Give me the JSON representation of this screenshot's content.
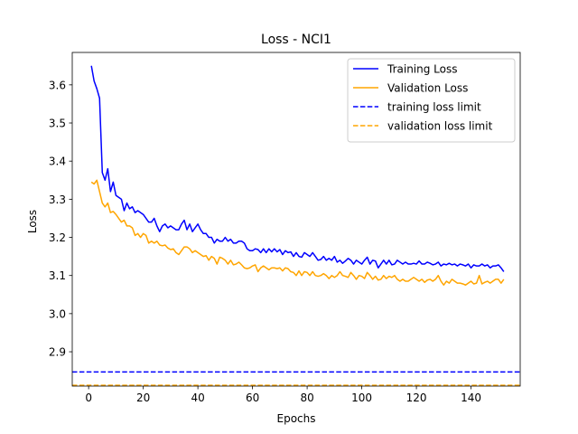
{
  "chart_data": {
    "type": "line",
    "title": "Loss - NCI1",
    "xlabel": "Epochs",
    "ylabel": "Loss",
    "xlim": [
      -6,
      158
    ],
    "ylim": [
      2.81,
      3.685
    ],
    "x_ticks": [
      0,
      20,
      40,
      60,
      80,
      100,
      120,
      140
    ],
    "x_tick_labels": [
      "0",
      "20",
      "40",
      "60",
      "80",
      "100",
      "120",
      "140"
    ],
    "y_ticks": [
      2.9,
      3.0,
      3.1,
      3.2,
      3.3,
      3.4,
      3.5,
      3.6
    ],
    "y_tick_labels": [
      "2.9",
      "3.0",
      "3.1",
      "3.2",
      "3.3",
      "3.4",
      "3.5",
      "3.6"
    ],
    "grid": false,
    "legend_position": "top-right",
    "x": [
      1,
      2,
      3,
      4,
      5,
      6,
      7,
      8,
      9,
      10,
      11,
      12,
      13,
      14,
      15,
      16,
      17,
      18,
      19,
      20,
      21,
      22,
      23,
      24,
      25,
      26,
      27,
      28,
      29,
      30,
      31,
      32,
      33,
      34,
      35,
      36,
      37,
      38,
      39,
      40,
      41,
      42,
      43,
      44,
      45,
      46,
      47,
      48,
      49,
      50,
      51,
      52,
      53,
      54,
      55,
      56,
      57,
      58,
      59,
      60,
      61,
      62,
      63,
      64,
      65,
      66,
      67,
      68,
      69,
      70,
      71,
      72,
      73,
      74,
      75,
      76,
      77,
      78,
      79,
      80,
      81,
      82,
      83,
      84,
      85,
      86,
      87,
      88,
      89,
      90,
      91,
      92,
      93,
      94,
      95,
      96,
      97,
      98,
      99,
      100,
      101,
      102,
      103,
      104,
      105,
      106,
      107,
      108,
      109,
      110,
      111,
      112,
      113,
      114,
      115,
      116,
      117,
      118,
      119,
      120,
      121,
      122,
      123,
      124,
      125,
      126,
      127,
      128,
      129,
      130,
      131,
      132,
      133,
      134,
      135,
      136,
      137,
      138,
      139,
      140,
      141,
      142,
      143,
      144,
      145,
      146,
      147,
      148,
      149,
      150,
      151,
      152
    ],
    "series": [
      {
        "name": "Training Loss",
        "color": "#0000ff",
        "style": "solid",
        "values": [
          3.65,
          3.61,
          3.59,
          3.565,
          3.37,
          3.35,
          3.38,
          3.32,
          3.345,
          3.31,
          3.305,
          3.3,
          3.27,
          3.29,
          3.275,
          3.28,
          3.265,
          3.27,
          3.265,
          3.26,
          3.25,
          3.24,
          3.24,
          3.25,
          3.23,
          3.215,
          3.23,
          3.235,
          3.225,
          3.23,
          3.225,
          3.22,
          3.22,
          3.235,
          3.245,
          3.22,
          3.235,
          3.215,
          3.225,
          3.235,
          3.22,
          3.21,
          3.21,
          3.2,
          3.2,
          3.185,
          3.195,
          3.19,
          3.19,
          3.2,
          3.19,
          3.195,
          3.185,
          3.185,
          3.19,
          3.19,
          3.185,
          3.17,
          3.165,
          3.165,
          3.17,
          3.168,
          3.16,
          3.17,
          3.16,
          3.17,
          3.162,
          3.17,
          3.162,
          3.168,
          3.155,
          3.165,
          3.16,
          3.162,
          3.15,
          3.16,
          3.15,
          3.148,
          3.16,
          3.155,
          3.15,
          3.16,
          3.15,
          3.14,
          3.142,
          3.15,
          3.14,
          3.145,
          3.14,
          3.15,
          3.135,
          3.14,
          3.132,
          3.138,
          3.145,
          3.14,
          3.13,
          3.14,
          3.135,
          3.13,
          3.14,
          3.148,
          3.13,
          3.14,
          3.138,
          3.12,
          3.13,
          3.14,
          3.13,
          3.14,
          3.128,
          3.13,
          3.14,
          3.135,
          3.13,
          3.135,
          3.13,
          3.13,
          3.132,
          3.13,
          3.138,
          3.13,
          3.13,
          3.135,
          3.132,
          3.128,
          3.13,
          3.135,
          3.125,
          3.13,
          3.128,
          3.132,
          3.128,
          3.13,
          3.125,
          3.13,
          3.128,
          3.125,
          3.13,
          3.12,
          3.128,
          3.125,
          3.125,
          3.13,
          3.125,
          3.128,
          3.12,
          3.125,
          3.125,
          3.128,
          3.12,
          3.11
        ]
      },
      {
        "name": "Validation Loss",
        "color": "#ffa500",
        "style": "solid",
        "values": [
          3.345,
          3.34,
          3.35,
          3.32,
          3.29,
          3.28,
          3.29,
          3.265,
          3.268,
          3.26,
          3.25,
          3.24,
          3.245,
          3.23,
          3.23,
          3.225,
          3.205,
          3.21,
          3.2,
          3.21,
          3.205,
          3.185,
          3.19,
          3.185,
          3.19,
          3.18,
          3.178,
          3.18,
          3.172,
          3.168,
          3.17,
          3.16,
          3.155,
          3.165,
          3.175,
          3.175,
          3.17,
          3.16,
          3.165,
          3.16,
          3.155,
          3.15,
          3.152,
          3.14,
          3.15,
          3.145,
          3.13,
          3.148,
          3.145,
          3.14,
          3.13,
          3.14,
          3.128,
          3.13,
          3.135,
          3.128,
          3.12,
          3.118,
          3.12,
          3.125,
          3.128,
          3.11,
          3.12,
          3.125,
          3.12,
          3.115,
          3.12,
          3.12,
          3.118,
          3.12,
          3.112,
          3.12,
          3.118,
          3.11,
          3.108,
          3.1,
          3.112,
          3.1,
          3.11,
          3.108,
          3.1,
          3.11,
          3.1,
          3.098,
          3.1,
          3.105,
          3.1,
          3.092,
          3.1,
          3.095,
          3.1,
          3.11,
          3.1,
          3.098,
          3.095,
          3.108,
          3.1,
          3.09,
          3.1,
          3.098,
          3.092,
          3.108,
          3.1,
          3.09,
          3.098,
          3.088,
          3.09,
          3.1,
          3.092,
          3.098,
          3.095,
          3.1,
          3.09,
          3.085,
          3.09,
          3.085,
          3.085,
          3.09,
          3.095,
          3.09,
          3.085,
          3.09,
          3.082,
          3.088,
          3.09,
          3.085,
          3.09,
          3.1,
          3.085,
          3.075,
          3.085,
          3.08,
          3.09,
          3.085,
          3.08,
          3.08,
          3.078,
          3.075,
          3.08,
          3.085,
          3.078,
          3.08,
          3.1,
          3.078,
          3.082,
          3.085,
          3.08,
          3.085,
          3.09,
          3.09,
          3.08,
          3.09
        ]
      }
    ],
    "hlines": [
      {
        "name": "training loss limit",
        "color": "#0000ff",
        "style": "dashed",
        "value": 2.847
      },
      {
        "name": "validation loss limit",
        "color": "#ffa500",
        "style": "dashed",
        "value": 2.812
      }
    ]
  }
}
